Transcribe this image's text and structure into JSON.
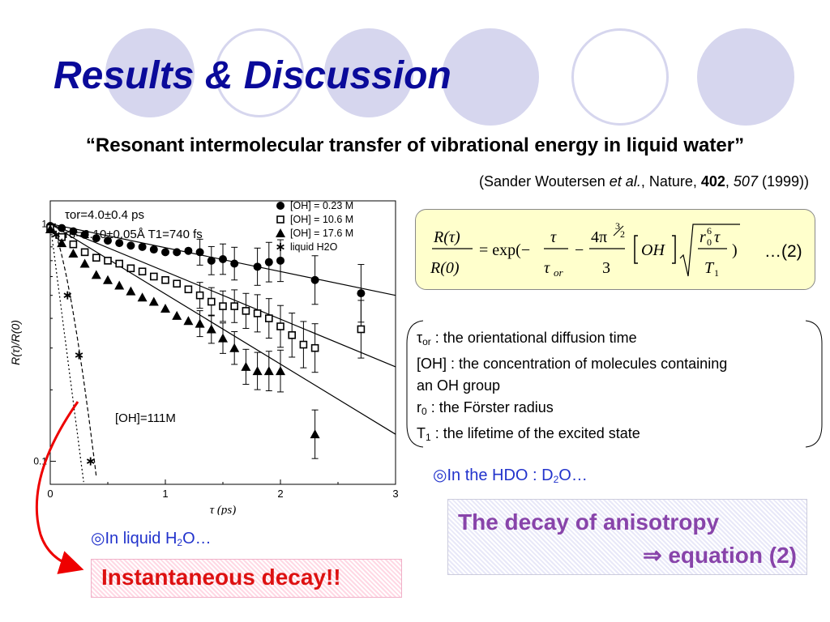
{
  "slide": {
    "title": "Results & Discussion",
    "paper_title": "“Resonant intermolecular transfer of vibrational energy in liquid water”",
    "citation": {
      "pre": "(Sander Woutersen ",
      "etal": "et al.",
      "journal": ", Nature, ",
      "volume": "402",
      "sep": ", ",
      "page": "507",
      "year": " (1999))"
    }
  },
  "equation": {
    "number": "…(2)"
  },
  "definitions": {
    "tau_or_symbol": "τ",
    "tau_or_sub": "or",
    "tau_or_text": " : the orientational diffusion time",
    "oh_line1": "[OH] : the concentration of molecules containing",
    "oh_line2": "an OH group",
    "r0_symbol": "r",
    "r0_sub": "0",
    "r0_text": " : the Förster radius",
    "t1_symbol": "T",
    "t1_sub": "1",
    "t1_text": " : the lifetime of the excited state"
  },
  "notes": {
    "hdo_pre": "◎In the HDO : D",
    "hdo_sub": "2",
    "hdo_post": "O…",
    "h2o_pre": "◎In liquid H",
    "h2o_sub": "2",
    "h2o_post": "O…"
  },
  "anisotropy_box": {
    "line1": "The decay of anisotropy",
    "line2": "⇒ equation (2)"
  },
  "instant_box": {
    "text": "Instantaneous decay!!"
  },
  "chart_data": {
    "type": "scatter",
    "xlabel": "τ (ps)",
    "ylabel": "R(τ)/R(0)",
    "xlim": [
      0,
      3
    ],
    "ylim": [
      0.08,
      1.25
    ],
    "yscale": "log",
    "xticks": [
      "0",
      "1",
      "2",
      "3"
    ],
    "yticks": [
      "0.1",
      "1"
    ],
    "legend_position": "top-right",
    "annotations": {
      "tau_or": "τor=4.0±0.4 ps",
      "r0_t1": "ro=2.10±0.05Å   T1=740 fs",
      "oh111": "[OH]=111M"
    },
    "series": [
      {
        "name": "[OH] = 0.23 M",
        "marker": "filled-circle",
        "x": [
          0.0,
          0.1,
          0.2,
          0.3,
          0.4,
          0.5,
          0.6,
          0.7,
          0.8,
          0.9,
          1.0,
          1.1,
          1.2,
          1.3,
          1.4,
          1.5,
          1.6,
          1.8,
          1.9,
          2.0,
          2.3,
          2.7
        ],
        "y": [
          0.98,
          0.96,
          0.93,
          0.9,
          0.87,
          0.85,
          0.83,
          0.81,
          0.8,
          0.78,
          0.76,
          0.76,
          0.77,
          0.76,
          0.7,
          0.71,
          0.68,
          0.66,
          0.69,
          0.7,
          0.58,
          0.51
        ],
        "fit": [
          1.0,
          0.5
        ]
      },
      {
        "name": "[OH] = 10.6 M",
        "marker": "open-square",
        "x": [
          0.0,
          0.1,
          0.2,
          0.3,
          0.4,
          0.5,
          0.6,
          0.7,
          0.8,
          0.9,
          1.0,
          1.1,
          1.2,
          1.3,
          1.4,
          1.5,
          1.6,
          1.7,
          1.8,
          1.9,
          2.0,
          2.1,
          2.2,
          2.3,
          2.7
        ],
        "y": [
          0.96,
          0.88,
          0.82,
          0.76,
          0.72,
          0.7,
          0.68,
          0.65,
          0.63,
          0.6,
          0.58,
          0.56,
          0.53,
          0.5,
          0.47,
          0.45,
          0.45,
          0.43,
          0.42,
          0.4,
          0.37,
          0.34,
          0.31,
          0.3,
          0.36
        ],
        "fit": [
          1.0,
          0.25
        ]
      },
      {
        "name": "[OH] = 17.6 M",
        "marker": "filled-triangle",
        "x": [
          0.0,
          0.1,
          0.2,
          0.3,
          0.4,
          0.5,
          0.6,
          0.7,
          0.8,
          0.9,
          1.0,
          1.1,
          1.2,
          1.3,
          1.4,
          1.5,
          1.6,
          1.7,
          1.8,
          1.9,
          2.0,
          2.3
        ],
        "y": [
          0.95,
          0.83,
          0.75,
          0.68,
          0.61,
          0.58,
          0.55,
          0.52,
          0.49,
          0.47,
          0.44,
          0.41,
          0.39,
          0.38,
          0.36,
          0.33,
          0.3,
          0.25,
          0.24,
          0.24,
          0.24,
          0.13
        ],
        "fit": [
          1.0,
          0.13
        ]
      },
      {
        "name": "liquid H2O",
        "marker": "asterisk",
        "x": [
          0.05,
          0.15,
          0.25,
          0.35
        ],
        "y": [
          0.9,
          0.5,
          0.28,
          0.1
        ]
      }
    ]
  }
}
